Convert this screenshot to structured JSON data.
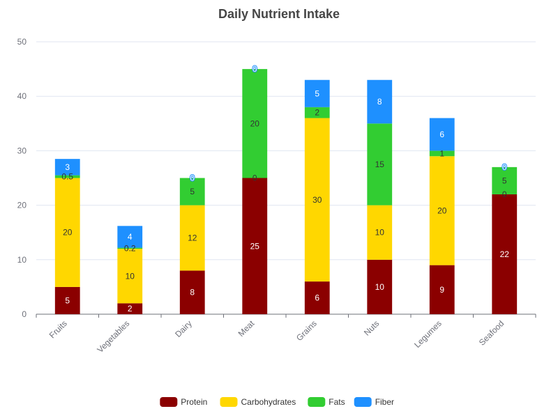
{
  "chart_data": {
    "type": "bar",
    "stacked": true,
    "title": "Daily Nutrient Intake",
    "xlabel": "",
    "ylabel": "",
    "ylim": [
      0,
      50
    ],
    "yticks": [
      0,
      10,
      20,
      30,
      40,
      50
    ],
    "grid": true,
    "legend_position": "bottom-center",
    "categories": [
      "Fruits",
      "Vegetables",
      "Dairy",
      "Meat",
      "Grains",
      "Nuts",
      "Legumes",
      "Seafood"
    ],
    "series": [
      {
        "name": "Protein",
        "color": "#8b0000",
        "label_color": "#ffffff",
        "values": [
          5,
          2,
          8,
          25,
          6,
          10,
          9,
          22
        ]
      },
      {
        "name": "Carbohydrates",
        "color": "#ffd700",
        "label_color": "#333333",
        "values": [
          20,
          10,
          12,
          0,
          30,
          10,
          20,
          0
        ]
      },
      {
        "name": "Fats",
        "color": "#32cd32",
        "label_color": "#333333",
        "values": [
          0.5,
          0.2,
          5,
          20,
          2,
          15,
          1,
          5
        ]
      },
      {
        "name": "Fiber",
        "color": "#1e90ff",
        "label_color": "#ffffff",
        "values": [
          3,
          4,
          0,
          0,
          5,
          8,
          6,
          0
        ]
      }
    ]
  }
}
